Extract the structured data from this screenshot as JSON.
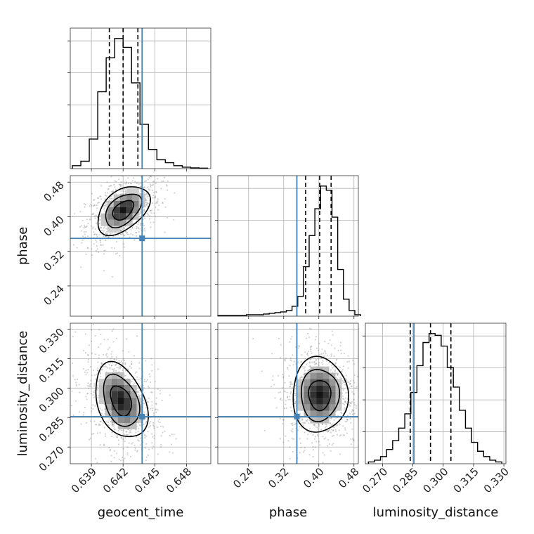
{
  "chart_data": {
    "type": "corner",
    "parameters": [
      "geocent_time",
      "phase",
      "luminosity_distance"
    ],
    "truths": {
      "geocent_time": 0.6438,
      "phase": 0.35,
      "luminosity_distance": 0.2855
    },
    "truth_color": "#4682b4",
    "grid": true,
    "diagonal": [
      {
        "parameter": "geocent_time",
        "xlim": [
          0.637,
          0.6503
        ],
        "bin_edges": [
          0.6372,
          0.638,
          0.6388,
          0.6396,
          0.6404,
          0.6412,
          0.642,
          0.6428,
          0.6436,
          0.6444,
          0.6452,
          0.646,
          0.6468,
          0.6476,
          0.6484,
          0.6492,
          0.65
        ],
        "counts": [
          2,
          5,
          20,
          52,
          75,
          88,
          82,
          58,
          30,
          13,
          6,
          4,
          2,
          1,
          0.5,
          0.3
        ],
        "quantiles": [
          0.6407,
          0.642,
          0.6434
        ],
        "ticks": [
          0.639,
          0.642,
          0.645,
          0.648
        ],
        "tick_labels": [
          "0.639",
          "0.642",
          "0.645",
          "0.648"
        ],
        "xlabel": "geocent_time"
      },
      {
        "parameter": "phase",
        "xlim": [
          0.17,
          0.49
        ],
        "bin_edges": [
          0.17,
          0.183,
          0.196,
          0.209,
          0.222,
          0.235,
          0.248,
          0.261,
          0.274,
          0.287,
          0.3,
          0.313,
          0.326,
          0.339,
          0.352,
          0.365,
          0.378,
          0.391,
          0.404,
          0.417,
          0.43,
          0.443,
          0.456,
          0.469,
          0.482,
          0.495
        ],
        "counts": [
          0.5,
          0.5,
          0.5,
          0.5,
          0.5,
          1,
          1,
          1,
          1.5,
          2,
          2.5,
          3,
          4,
          7,
          14,
          35,
          57,
          76,
          92,
          89,
          70,
          33,
          12,
          4,
          1
        ],
        "quantiles": [
          0.37,
          0.402,
          0.428
        ],
        "ticks": [
          0.24,
          0.32,
          0.4,
          0.48
        ],
        "tick_labels": [
          "0.24",
          "0.32",
          "0.40",
          "0.48"
        ],
        "xlabel": "phase"
      },
      {
        "parameter": "luminosity_distance",
        "xlim": [
          0.2615,
          0.331
        ],
        "bin_edges": [
          0.263,
          0.266,
          0.269,
          0.272,
          0.275,
          0.278,
          0.281,
          0.284,
          0.287,
          0.29,
          0.293,
          0.296,
          0.299,
          0.302,
          0.305,
          0.308,
          0.311,
          0.314,
          0.317,
          0.32,
          0.323,
          0.326,
          0.329
        ],
        "counts": [
          1,
          2,
          4,
          8,
          13,
          20,
          28,
          40,
          55,
          68,
          73,
          72,
          66,
          54,
          43,
          30,
          20,
          12,
          7,
          4,
          2,
          1
        ],
        "quantiles": [
          0.2837,
          0.2937,
          0.3038
        ],
        "ticks": [
          0.27,
          0.285,
          0.3,
          0.315,
          0.33
        ],
        "tick_labels": [
          "0.270",
          "0.285",
          "0.300",
          "0.315",
          "0.330"
        ],
        "xlabel": "luminosity_distance"
      }
    ],
    "off_diagonal": [
      {
        "x": "geocent_time",
        "y": "phase",
        "ylim": [
          0.17,
          0.495
        ],
        "yticks": [
          0.24,
          0.32,
          0.4,
          0.48
        ],
        "ytick_labels": [
          "0.24",
          "0.32",
          "0.40",
          "0.48"
        ],
        "ylabel": "phase",
        "peak": [
          0.642,
          0.415
        ],
        "sigma": [
          0.0011,
          0.025
        ],
        "correlation": 0.45
      },
      {
        "x": "geocent_time",
        "y": "luminosity_distance",
        "ylim": [
          0.2615,
          0.333
        ],
        "yticks": [
          0.27,
          0.285,
          0.3,
          0.315,
          0.33
        ],
        "ytick_labels": [
          "0.270",
          "0.285",
          "0.300",
          "0.315",
          "0.330"
        ],
        "ylabel": "luminosity_distance",
        "peak": [
          0.6418,
          0.2935
        ],
        "sigma": [
          0.0011,
          0.0085
        ],
        "correlation": -0.35
      },
      {
        "x": "phase",
        "y": "luminosity_distance",
        "peak": [
          0.402,
          0.2965
        ],
        "sigma": [
          0.028,
          0.0085
        ],
        "correlation": 0.0
      }
    ]
  }
}
